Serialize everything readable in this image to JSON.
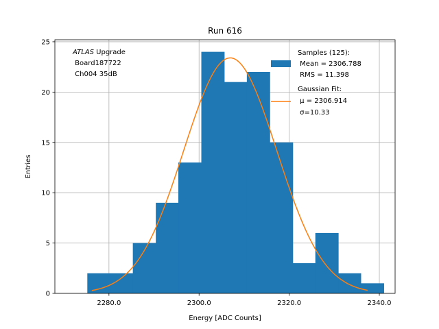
{
  "chart_data": {
    "type": "bar",
    "title": "Run 616",
    "xlabel": "Energy [ADC Counts]",
    "ylabel": "Entries",
    "xlim": [
      2268.0,
      2343.5
    ],
    "ylim": [
      0,
      25.2
    ],
    "grid": true,
    "x_ticks": [
      {
        "value": 2280.0,
        "label": "2280.0"
      },
      {
        "value": 2300.0,
        "label": "2300.0"
      },
      {
        "value": 2320.0,
        "label": "2320.0"
      },
      {
        "value": 2340.0,
        "label": "2340.0"
      }
    ],
    "y_ticks": [
      {
        "value": 0,
        "label": "0"
      },
      {
        "value": 5,
        "label": "5"
      },
      {
        "value": 10,
        "label": "10"
      },
      {
        "value": 15,
        "label": "15"
      },
      {
        "value": 20,
        "label": "20"
      },
      {
        "value": 25,
        "label": "25"
      }
    ],
    "bin_edges": [
      2275.2,
      2280.2,
      2285.3,
      2290.4,
      2295.4,
      2300.5,
      2305.6,
      2310.6,
      2315.7,
      2320.8,
      2325.8,
      2330.9,
      2335.9,
      2341.0
    ],
    "values": [
      2,
      2,
      5,
      9,
      13,
      24,
      21,
      22,
      15,
      3,
      6,
      2,
      1
    ],
    "bar_color": "#1f77b4",
    "fit_color": "#ff7f0e",
    "fit": {
      "mu": 2306.914,
      "sigma": 10.33,
      "amplitude": 23.4,
      "x_range": [
        2276.2,
        2337.4
      ]
    },
    "legend": {
      "placement": "top-right",
      "entries": [
        {
          "series": "samples",
          "lines": [
            "Samples (125):",
            " Mean = 2306.788",
            " RMS = 11.398"
          ]
        },
        {
          "series": "fit",
          "lines": [
            "Gaussian Fit:",
            " μ = 2306.914",
            " σ=10.33"
          ]
        }
      ]
    },
    "annotation": {
      "italic": "ATLAS",
      "line1_rest": " Upgrade",
      "line2": " Board187722",
      "line3": " Ch004 35dB"
    }
  }
}
